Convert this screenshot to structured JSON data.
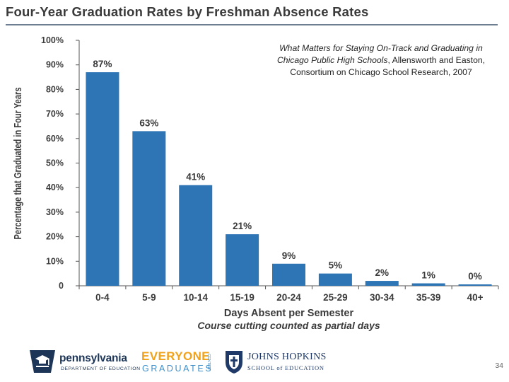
{
  "slide": {
    "title": "Four-Year Graduation Rates by Freshman Absence Rates",
    "citation_title": "What Matters for Staying On-Track and Graduating in Chicago Public High Schools",
    "citation_rest": ", Allensworth and Easton, Consortium on Chicago School Research, 2007",
    "page_number": "34"
  },
  "chart_data": {
    "type": "bar",
    "title": "",
    "xlabel": "Days Absent per Semester",
    "xlabel_sub": "Course cutting counted as partial days",
    "ylabel": "Percentage that Graduated in Four Years",
    "ylim": [
      0,
      100
    ],
    "yticks": [
      0,
      10,
      20,
      30,
      40,
      50,
      60,
      70,
      80,
      90,
      100
    ],
    "ytick_labels": [
      "0",
      "10%",
      "20%",
      "30%",
      "40%",
      "50%",
      "60%",
      "70%",
      "80%",
      "90%",
      "100%"
    ],
    "categories": [
      "0-4",
      "5-9",
      "10-14",
      "15-19",
      "20-24",
      "25-29",
      "30-34",
      "35-39",
      "40+"
    ],
    "values": [
      87,
      63,
      41,
      21,
      9,
      5,
      2,
      1,
      0
    ],
    "value_labels": [
      "87%",
      "63%",
      "41%",
      "21%",
      "9%",
      "5%",
      "2%",
      "1%",
      "0%"
    ],
    "bar_color": "#2e75b6",
    "grid": false
  },
  "logos": {
    "pennsylvania": {
      "name": "pennsylvania",
      "dept": "DEPARTMENT OF EDUCATION"
    },
    "everyone_graduates": {
      "line1": "EVERYONE",
      "line2": "GRADUATES",
      "line3": "CENTER"
    },
    "johns_hopkins": {
      "line1": "JOHNS HOPKINS",
      "line2": "SCHOOL of EDUCATION"
    }
  }
}
